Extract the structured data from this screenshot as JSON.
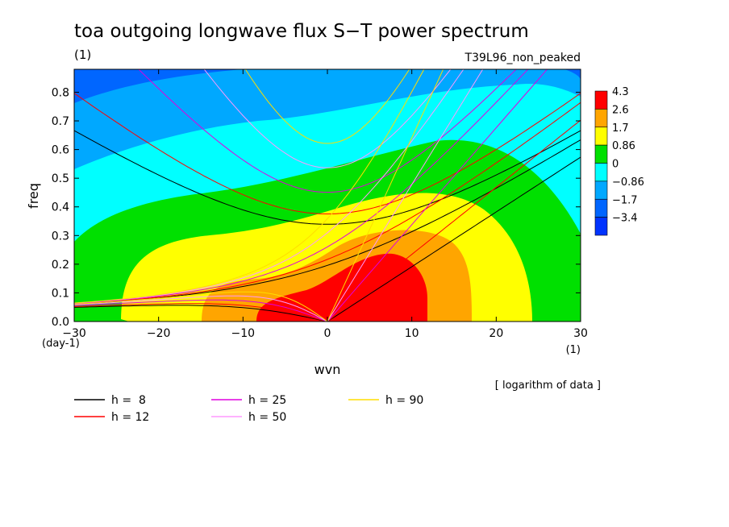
{
  "chart_data": {
    "type": "heatmap",
    "title": "toa outgoing longwave flux S−T power spectrum",
    "subtitle_left": "(1)",
    "subtitle_right": "T39L96_non_peaked",
    "xlabel": "wvn",
    "ylabel": "freq",
    "x_unit": "(1)",
    "y_unit": "(day-1)",
    "xlim": [
      -30,
      30
    ],
    "ylim": [
      0,
      0.88
    ],
    "xticks": [
      -30,
      -20,
      -10,
      0,
      10,
      20,
      30
    ],
    "yticks": [
      0.0,
      0.1,
      0.2,
      0.3,
      0.4,
      0.5,
      0.6,
      0.7,
      0.8
    ],
    "x_tick_labels": [
      "−30",
      "−20",
      "−10",
      "0",
      "10",
      "20",
      "30"
    ],
    "y_tick_labels": [
      "0.0",
      "0.1",
      "0.2",
      "0.3",
      "0.4",
      "0.5",
      "0.6",
      "0.7",
      "0.8"
    ],
    "note": "[ logarithm of data ]",
    "colorbar": {
      "levels": [
        "4.3",
        "2.6",
        "1.7",
        "0.86",
        "0",
        "−0.86",
        "−1.7",
        "−3.4"
      ],
      "colors": [
        "#ff0000",
        "#ffa500",
        "#ffff00",
        "#00e000",
        "#00ffff",
        "#00a8ff",
        "#0066ff",
        "#0033ff"
      ]
    },
    "bands": [
      {
        "color": "#0066ff",
        "fill": "#0066ff"
      },
      {
        "color": "#00a8ff"
      },
      {
        "color": "#00ffff"
      },
      {
        "color": "#00e000"
      },
      {
        "color": "#ffff00"
      },
      {
        "color": "#ffa500"
      },
      {
        "color": "#ff0000"
      }
    ],
    "legend": [
      {
        "label": "h =  8",
        "h": 8,
        "color": "#000000"
      },
      {
        "label": "h = 12",
        "h": 12,
        "color": "#ff0000"
      },
      {
        "label": "h = 25",
        "h": 25,
        "color": "#e000e0"
      },
      {
        "label": "h = 50",
        "h": 50,
        "color": "#ff99ff"
      },
      {
        "label": "h = 90",
        "h": 90,
        "color": "#ffdd00"
      }
    ]
  }
}
